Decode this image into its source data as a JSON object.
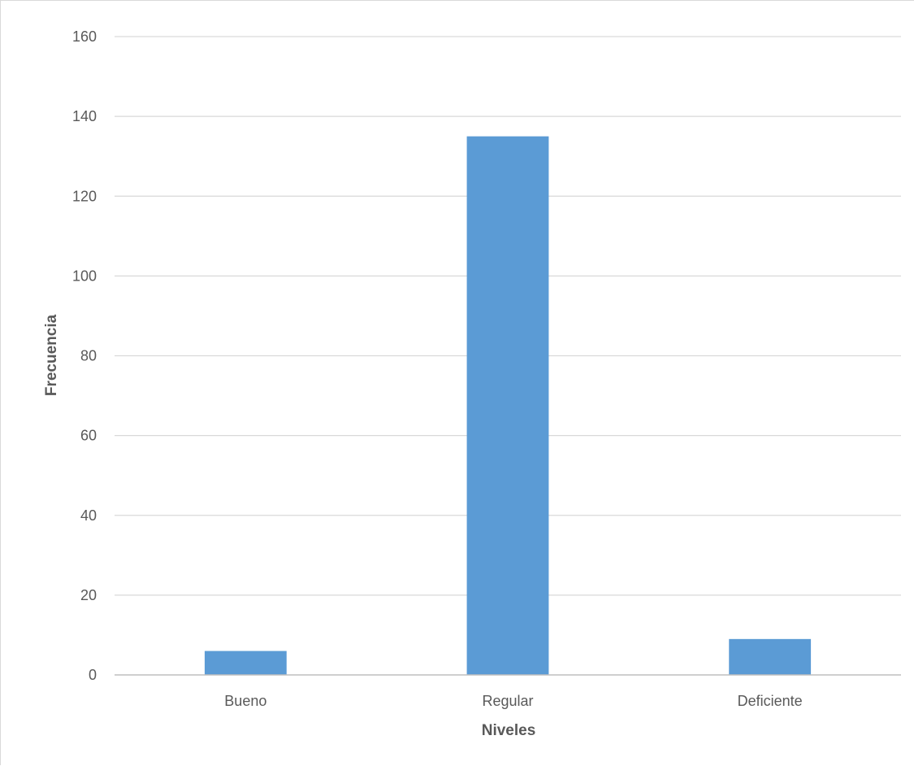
{
  "chart_data": {
    "type": "bar",
    "categories": [
      "Bueno",
      "Regular",
      "Deficiente"
    ],
    "values": [
      6,
      135,
      9
    ],
    "xlabel": "Niveles",
    "ylabel": "Frecuencia",
    "ylim": [
      0,
      160
    ],
    "yticks": [
      0,
      20,
      40,
      60,
      80,
      100,
      120,
      140,
      160
    ],
    "grid": true,
    "legend": "none",
    "colors": {
      "bar": "#5b9bd5",
      "grid": "#d9d9d9",
      "axis": "#bfbfbf",
      "text": "#595959"
    }
  }
}
